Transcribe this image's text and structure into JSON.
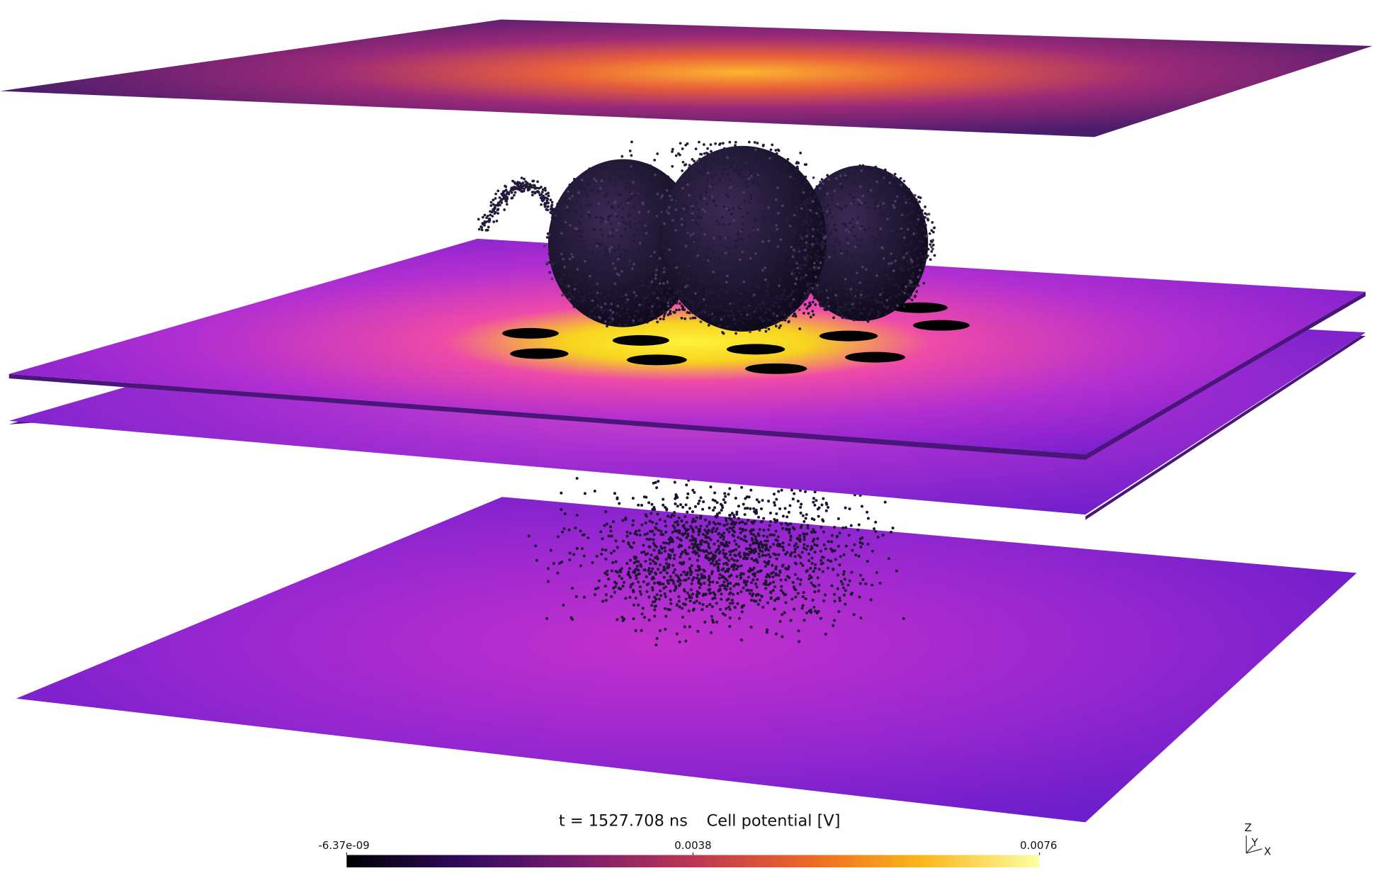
{
  "annotation": {
    "time": "t = 1527.708 ns",
    "colorbar": {
      "title": "Cell potential [V]",
      "ticks": [
        {
          "value": -6.37e-09,
          "label": "-6.37e-09"
        },
        0.0038,
        0.0076
      ]
    }
  },
  "axes": {
    "z": "Z",
    "y": "Y",
    "x": "X"
  }
}
